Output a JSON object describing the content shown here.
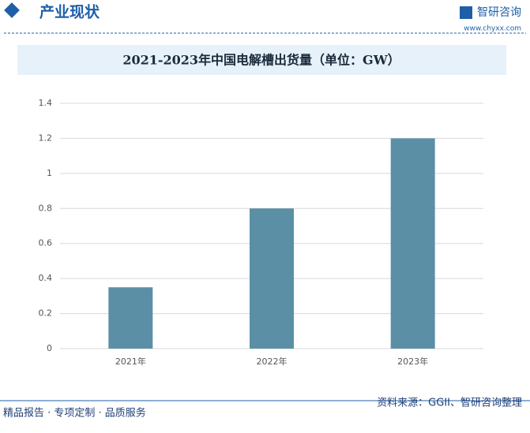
{
  "header": {
    "title": "产业现状",
    "brand": "智研咨询",
    "url": "www.chyxx.com"
  },
  "chart_data": {
    "type": "bar",
    "title": "2021-2023年中国电解槽出货量（单位：GW）",
    "categories": [
      "2021年",
      "2022年",
      "2023年"
    ],
    "values": [
      0.35,
      0.8,
      1.2
    ],
    "color": "#5b8fa6",
    "ylim": [
      0,
      1.4
    ],
    "yticks": [
      0,
      0.2,
      0.4,
      0.6,
      0.8,
      1,
      1.2,
      1.4
    ],
    "grid": true
  },
  "footer": {
    "slogan": "精品报告 · 专项定制 · 品质服务",
    "source": "资料来源：GGII、智研咨询整理"
  }
}
